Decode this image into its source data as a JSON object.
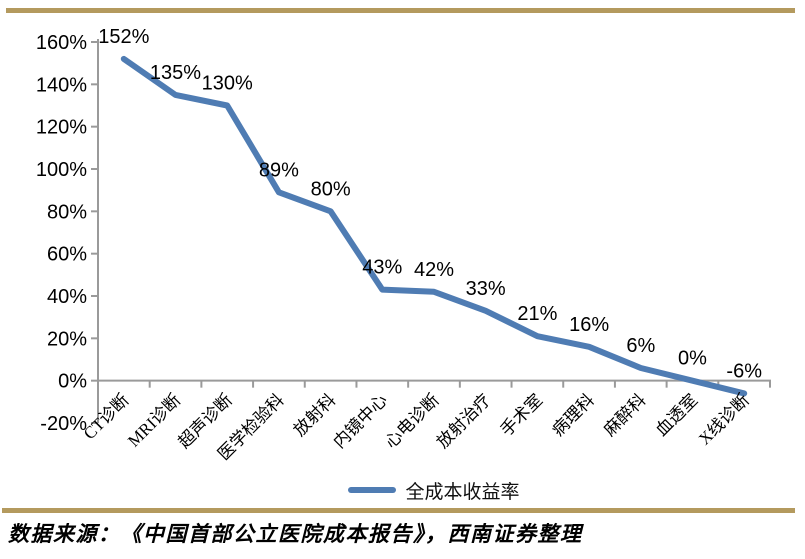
{
  "page": {
    "background_color": "#ffffff",
    "divider_color": "#b49a5e",
    "source_note": "数据来源：《中国首部公立医院成本报告》，西南证券整理"
  },
  "chart_data": {
    "type": "line",
    "title": "",
    "legend": {
      "label": "全成本收益率",
      "position": "bottom"
    },
    "categories": [
      "CT诊断",
      "MRI诊断",
      "超声诊断",
      "医学检验科",
      "放射科",
      "内镜中心",
      "心电诊断",
      "放射治疗",
      "手术室",
      "病理科",
      "麻醉科",
      "血透室",
      "X线诊断"
    ],
    "series": [
      {
        "name": "全成本收益率",
        "values": [
          152,
          135,
          130,
          89,
          80,
          43,
          42,
          33,
          21,
          16,
          6,
          0,
          -6
        ]
      }
    ],
    "data_labels": [
      "152%",
      "135%",
      "130%",
      "89%",
      "80%",
      "43%",
      "42%",
      "33%",
      "21%",
      "16%",
      "6%",
      "0%",
      "-6%"
    ],
    "xlabel": "",
    "ylabel": "",
    "ylim": [
      -20,
      160
    ],
    "ytick_step": 20,
    "ytick_labels": [
      "-20%",
      "0%",
      "20%",
      "40%",
      "60%",
      "80%",
      "100%",
      "120%",
      "140%",
      "160%"
    ],
    "grid": false,
    "colors": {
      "line": "#4f7cb3",
      "axis": "#9a9a9a",
      "text": "#000000"
    }
  }
}
